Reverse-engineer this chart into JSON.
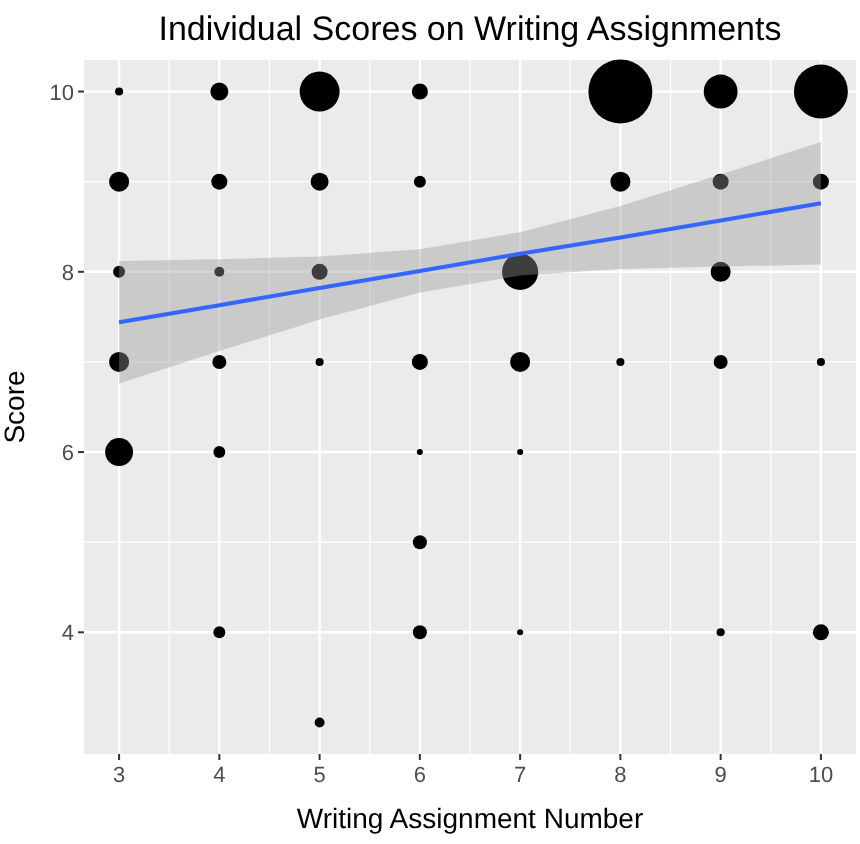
{
  "chart_data": {
    "type": "bubble",
    "title": "Individual Scores on Writing Assignments",
    "xlabel": "Writing Assignment Number",
    "ylabel": "Score",
    "xlim": [
      2.65,
      10.35
    ],
    "ylim": [
      2.65,
      10.35
    ],
    "xticks": [
      3,
      4,
      5,
      6,
      7,
      8,
      9,
      10
    ],
    "yticks": [
      4,
      6,
      8,
      10
    ],
    "grid": true,
    "series": [
      {
        "color": "#000000",
        "x": [
          3,
          3,
          3,
          3,
          3,
          4,
          4,
          4,
          4,
          4,
          4,
          5,
          5,
          5,
          5,
          5,
          6,
          6,
          6,
          6,
          6,
          6,
          7,
          7,
          7,
          7,
          8,
          8,
          8,
          9,
          9,
          9,
          9,
          9,
          10,
          10,
          10,
          10
        ],
        "values": [
          10,
          9,
          8,
          7,
          6,
          10,
          9,
          8,
          7,
          6,
          4,
          10,
          9,
          8,
          7,
          3,
          10,
          9,
          7,
          6,
          5,
          4,
          8,
          7,
          6,
          4,
          10,
          9,
          7,
          10,
          9,
          8,
          7,
          4,
          10,
          9,
          7,
          4
        ],
        "sizes": [
          0.016,
          0.098,
          0.035,
          0.098,
          0.19,
          0.079,
          0.063,
          0.024,
          0.048,
          0.035,
          0.035,
          0.39,
          0.079,
          0.063,
          0.016,
          0.024,
          0.063,
          0.035,
          0.063,
          0.009,
          0.048,
          0.048,
          0.32,
          0.098,
          0.009,
          0.009,
          1,
          0.098,
          0.016,
          0.28,
          0.063,
          0.098,
          0.048,
          0.016,
          0.71,
          0.063,
          0.016,
          0.063
        ]
      },
      {
        "type": "line",
        "color": "#3366ff",
        "x": [
          3,
          4,
          5,
          6,
          7,
          8,
          9,
          10
        ],
        "values": [
          7.44,
          7.63,
          7.82,
          8.01,
          8.2,
          8.38,
          8.57,
          8.76
        ],
        "lower": [
          6.76,
          7.12,
          7.47,
          7.77,
          7.96,
          8.03,
          8.06,
          8.08
        ],
        "upper": [
          8.12,
          8.14,
          8.17,
          8.25,
          8.44,
          8.73,
          9.08,
          9.44
        ]
      }
    ]
  }
}
